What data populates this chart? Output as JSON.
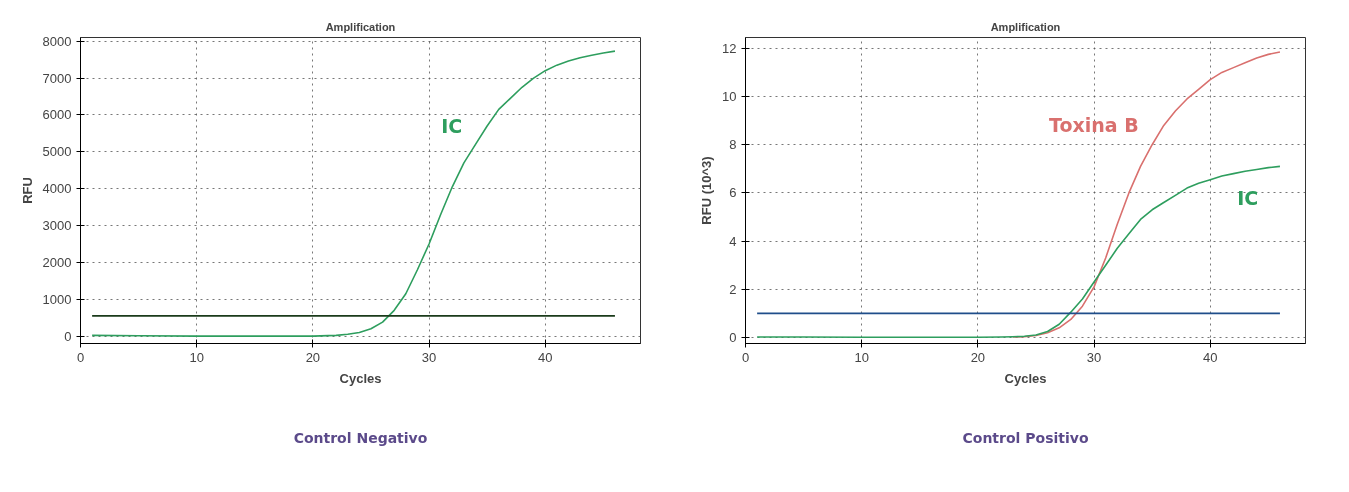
{
  "chart_data": [
    {
      "type": "line",
      "title": "Amplification",
      "xlabel": "Cycles",
      "ylabel": "RFU",
      "xlim": [
        0,
        48.2
      ],
      "ylim": [
        -200,
        8100
      ],
      "xticks": [
        0,
        10,
        20,
        30,
        40
      ],
      "yticks": [
        0,
        1000,
        2000,
        3000,
        4000,
        5000,
        6000,
        7000,
        8000
      ],
      "grid": true,
      "marker": "none",
      "line_style": "solid",
      "annotations": [
        "Control Negativo"
      ],
      "series": [
        {
          "name": "IC",
          "color": "#2e9e5e",
          "x": [
            1,
            5,
            10,
            15,
            20,
            22,
            23,
            24,
            25,
            26,
            27,
            28,
            29,
            30,
            31,
            32,
            33,
            34,
            35,
            36,
            37,
            38,
            39,
            40,
            41,
            42,
            43,
            44,
            45,
            46
          ],
          "values": [
            20,
            10,
            0,
            0,
            0,
            20,
            50,
            100,
            200,
            380,
            700,
            1150,
            1800,
            2500,
            3300,
            4050,
            4700,
            5200,
            5700,
            6150,
            6450,
            6750,
            7000,
            7200,
            7350,
            7460,
            7550,
            7620,
            7680,
            7730
          ]
        },
        {
          "color": "#1a3a1a",
          "x": [
            1,
            46
          ],
          "values": [
            550,
            550
          ]
        }
      ]
    },
    {
      "type": "line",
      "title": "Amplification",
      "xlabel": "Cycles",
      "ylabel": "RFU (10^3)",
      "xlim": [
        0,
        48.2
      ],
      "ylim": [
        -0.25,
        12.45
      ],
      "xticks": [
        0,
        10,
        20,
        30,
        40
      ],
      "yticks": [
        0,
        2,
        4,
        6,
        8,
        10,
        12
      ],
      "grid": true,
      "marker": "none",
      "line_style": "solid",
      "annotations": [
        "Control Positivo"
      ],
      "series": [
        {
          "name": "Toxina B",
          "color": "#d9706e",
          "x": [
            23,
            24,
            25,
            26,
            27,
            28,
            29,
            30,
            31,
            32,
            33,
            34,
            35,
            36,
            37,
            38,
            39,
            40,
            41,
            42,
            43,
            44,
            45,
            46
          ],
          "values": [
            0.02,
            0.03,
            0.08,
            0.2,
            0.4,
            0.75,
            1.3,
            2.1,
            3.3,
            4.7,
            6.0,
            7.1,
            8.0,
            8.8,
            9.4,
            9.9,
            10.3,
            10.7,
            11.0,
            11.2,
            11.4,
            11.6,
            11.75,
            11.85
          ]
        },
        {
          "name": "IC",
          "color": "#2e9e5e",
          "x": [
            1,
            5,
            10,
            15,
            20,
            22,
            23,
            24,
            25,
            26,
            27,
            28,
            29,
            30,
            31,
            32,
            33,
            34,
            35,
            36,
            37,
            38,
            39,
            40,
            41,
            42,
            43,
            44,
            45,
            46
          ],
          "values": [
            0.02,
            0.02,
            0.01,
            0.01,
            0.01,
            0.02,
            0.03,
            0.05,
            0.1,
            0.25,
            0.55,
            1.05,
            1.6,
            2.3,
            3.0,
            3.7,
            4.3,
            4.9,
            5.3,
            5.6,
            5.9,
            6.2,
            6.4,
            6.55,
            6.7,
            6.8,
            6.9,
            6.97,
            7.05,
            7.1
          ]
        },
        {
          "color": "#1f4e8a",
          "x": [
            1,
            46
          ],
          "values": [
            1.0,
            1.0
          ]
        }
      ]
    }
  ]
}
